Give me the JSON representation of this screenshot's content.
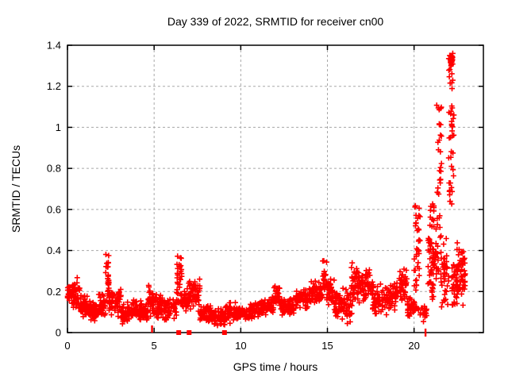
{
  "chart_data": {
    "type": "scatter",
    "title": "Day 339 of 2022, SRMTID for receiver cn00",
    "xlabel": "GPS time / hours",
    "ylabel": "SRMTID / TECUs",
    "xlim": [
      0,
      24
    ],
    "ylim": [
      0,
      1.4
    ],
    "xtick_vals": [
      0,
      5,
      10,
      15,
      20
    ],
    "xtick_labels": [
      "0",
      "5",
      "10",
      "15",
      "20"
    ],
    "ytick_vals": [
      0,
      0.2,
      0.4,
      0.6,
      0.8,
      1.0,
      1.2,
      1.4
    ],
    "ytick_labels": [
      "0",
      "0.2",
      "0.4",
      "0.6",
      "0.8",
      "1",
      "1.2",
      "1.4"
    ],
    "grid": true,
    "legend": "none",
    "marker": {
      "shape": "plus",
      "color": "#ff0000",
      "size": 7
    },
    "grid_color": "#a8a8a8",
    "border_color": "#000000",
    "background_color": "#ffffff",
    "series": [
      {
        "name": "SRMTID",
        "note": "dense scatter; bins give [t_start, t_end, value_min, value_max, n_points, mode] where mode 0 = band cluster, 1 = vertical spike column",
        "bins": [
          [
            0.0,
            0.3,
            0.13,
            0.23,
            28,
            0
          ],
          [
            0.3,
            0.7,
            0.11,
            0.27,
            45,
            0
          ],
          [
            0.7,
            1.2,
            0.07,
            0.19,
            50,
            0
          ],
          [
            1.2,
            1.8,
            0.05,
            0.16,
            55,
            0
          ],
          [
            1.8,
            2.2,
            0.07,
            0.19,
            40,
            0
          ],
          [
            2.2,
            2.4,
            0.15,
            0.39,
            26,
            1
          ],
          [
            2.4,
            3.1,
            0.07,
            0.22,
            55,
            0
          ],
          [
            3.1,
            3.7,
            0.04,
            0.15,
            50,
            0
          ],
          [
            3.7,
            4.3,
            0.05,
            0.17,
            50,
            0
          ],
          [
            4.3,
            4.65,
            0.05,
            0.15,
            28,
            0
          ],
          [
            4.65,
            4.95,
            0.07,
            0.28,
            26,
            0
          ],
          [
            4.95,
            5.5,
            0.05,
            0.2,
            45,
            0
          ],
          [
            5.5,
            6.3,
            0.05,
            0.17,
            60,
            0
          ],
          [
            6.3,
            6.6,
            0.14,
            0.38,
            36,
            1
          ],
          [
            6.6,
            7.0,
            0.09,
            0.22,
            32,
            0
          ],
          [
            7.0,
            7.65,
            0.1,
            0.28,
            55,
            0
          ],
          [
            7.65,
            8.4,
            0.04,
            0.14,
            60,
            0
          ],
          [
            8.4,
            9.1,
            0.03,
            0.12,
            55,
            0
          ],
          [
            9.1,
            9.7,
            0.04,
            0.16,
            48,
            0
          ],
          [
            9.7,
            10.5,
            0.05,
            0.13,
            60,
            0
          ],
          [
            10.5,
            11.3,
            0.06,
            0.16,
            60,
            0
          ],
          [
            11.3,
            11.9,
            0.08,
            0.18,
            48,
            0
          ],
          [
            11.9,
            12.3,
            0.1,
            0.24,
            34,
            0
          ],
          [
            12.3,
            13.1,
            0.08,
            0.18,
            60,
            0
          ],
          [
            13.1,
            14.0,
            0.1,
            0.23,
            70,
            0
          ],
          [
            14.0,
            14.7,
            0.13,
            0.26,
            55,
            0
          ],
          [
            14.7,
            14.95,
            0.18,
            0.37,
            22,
            1
          ],
          [
            14.95,
            15.4,
            0.12,
            0.28,
            40,
            0
          ],
          [
            15.4,
            16.1,
            0.06,
            0.24,
            55,
            0
          ],
          [
            16.1,
            16.45,
            0.03,
            0.2,
            24,
            0
          ],
          [
            16.35,
            16.55,
            0.15,
            0.34,
            18,
            1
          ],
          [
            16.55,
            17.6,
            0.12,
            0.33,
            85,
            0
          ],
          [
            17.6,
            18.6,
            0.07,
            0.25,
            70,
            0
          ],
          [
            18.6,
            19.15,
            0.1,
            0.25,
            42,
            0
          ],
          [
            19.15,
            19.6,
            0.14,
            0.33,
            38,
            0
          ],
          [
            19.6,
            20.0,
            0.07,
            0.2,
            30,
            0
          ],
          [
            20.0,
            20.35,
            0.1,
            0.62,
            42,
            1
          ],
          [
            20.35,
            20.78,
            0.04,
            0.16,
            18,
            0
          ],
          [
            20.8,
            21.15,
            0.15,
            0.64,
            48,
            1
          ],
          [
            21.0,
            21.45,
            0.22,
            0.53,
            28,
            0
          ],
          [
            21.3,
            21.6,
            0.45,
            1.19,
            32,
            1
          ],
          [
            21.55,
            22.0,
            0.1,
            0.5,
            40,
            0
          ],
          [
            22.0,
            22.3,
            0.62,
            1.37,
            48,
            1
          ],
          [
            22.05,
            22.25,
            1.28,
            1.37,
            22,
            0
          ],
          [
            22.15,
            22.5,
            0.13,
            0.35,
            28,
            0
          ],
          [
            22.45,
            22.95,
            0.13,
            0.47,
            62,
            0
          ]
        ],
        "zero_squares": [
          6.42,
          7.02,
          9.06
        ],
        "zero_bars": [
          20.66
        ],
        "near_zero_ticks": [
          4.86,
          4.9
        ]
      }
    ]
  }
}
